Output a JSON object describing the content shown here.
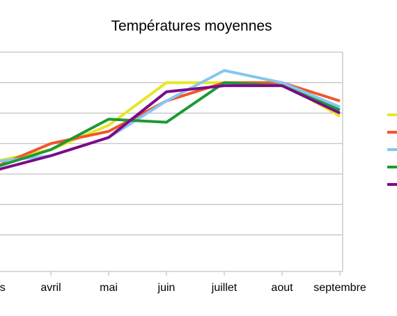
{
  "chart_data": {
    "type": "line",
    "title": "Températures moyennes",
    "xlabel": "",
    "ylabel": "",
    "categories": [
      "mars",
      "avril",
      "mai",
      "juin",
      "juillet",
      "aout",
      "septembre"
    ],
    "ylim": [
      -6,
      30
    ],
    "gridlines_y": [
      0,
      5,
      10,
      15,
      20,
      25,
      30
    ],
    "grid": true,
    "legend_position": "right",
    "series": [
      {
        "color": "#e6e629",
        "values": [
          12,
          14,
          18,
          25,
          25,
          25,
          19.5
        ]
      },
      {
        "color": "#f0572a",
        "values": [
          11,
          15,
          17,
          22,
          25,
          25,
          22
        ]
      },
      {
        "color": "#86c6f0",
        "values": [
          12,
          13,
          16,
          22,
          27,
          25,
          21
        ]
      },
      {
        "color": "#1d9935",
        "values": [
          11,
          14,
          19,
          18.5,
          25,
          24.5,
          20.5
        ]
      },
      {
        "color": "#7a0c86",
        "values": [
          10.5,
          13,
          16,
          23.5,
          24.5,
          24.5,
          20
        ]
      }
    ]
  }
}
